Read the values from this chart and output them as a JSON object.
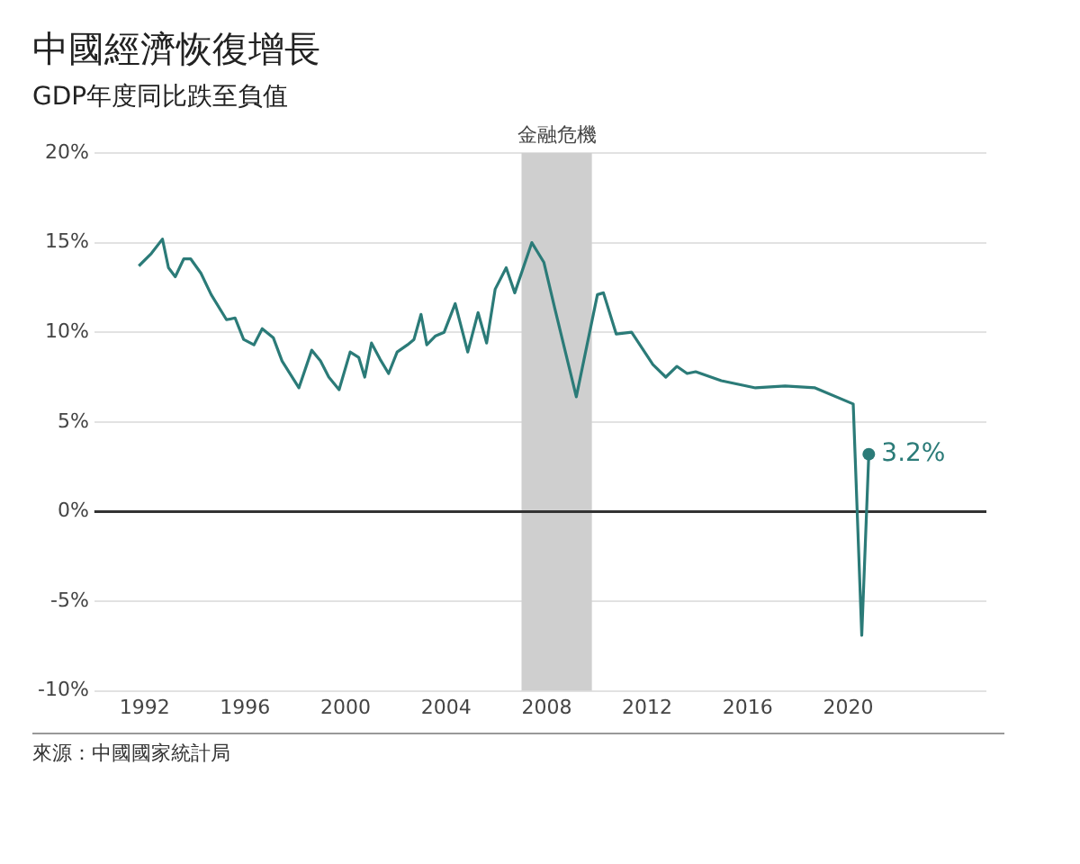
{
  "chart_data": {
    "type": "line",
    "title": "中國經濟恢復增長",
    "subtitle": "GDP年度同比跌至負值",
    "series": [
      {
        "color": "#2b7b78",
        "x": [
          1991.77,
          1992.27,
          1992.71,
          1992.95,
          1993.22,
          1993.56,
          1993.83,
          1994.24,
          1994.65,
          1995.26,
          1995.6,
          1995.94,
          1996.35,
          1996.68,
          1997.12,
          1997.47,
          1998.14,
          1998.65,
          1999.0,
          1999.33,
          1999.74,
          2000.18,
          2000.52,
          2000.76,
          2001.03,
          2001.37,
          2001.71,
          2002.05,
          2002.46,
          2002.72,
          2003.0,
          2003.23,
          2003.58,
          2003.92,
          2004.36,
          2004.86,
          2005.27,
          2005.61,
          2005.95,
          2006.39,
          2006.73,
          2007.41,
          2007.89,
          2008.33,
          2009.18,
          2010.02,
          2010.26,
          2010.77,
          2011.38,
          2012.23,
          2012.74,
          2013.18,
          2013.59,
          2013.93,
          2014.95,
          2016.31,
          2017.49,
          2018.68,
          2020.2,
          2020.54,
          2020.82
        ],
        "values": [
          13.7,
          14.4,
          15.2,
          13.6,
          13.1,
          14.1,
          14.1,
          13.3,
          12.1,
          10.7,
          10.8,
          9.6,
          9.3,
          10.2,
          9.7,
          8.4,
          6.9,
          9.0,
          8.4,
          7.5,
          6.8,
          8.9,
          8.6,
          7.5,
          9.4,
          8.5,
          7.7,
          8.9,
          9.3,
          9.6,
          11.0,
          9.3,
          9.8,
          10.0,
          11.6,
          8.9,
          11.1,
          9.4,
          12.4,
          13.6,
          12.2,
          15.0,
          13.9,
          11.3,
          6.4,
          12.1,
          12.2,
          9.9,
          10.0,
          8.2,
          7.5,
          8.1,
          7.7,
          7.8,
          7.3,
          6.9,
          7.0,
          6.9,
          6.0,
          -6.9,
          3.2
        ]
      }
    ],
    "xlim": [
      1990,
      2025.5
    ],
    "xticks": [
      1992,
      1996,
      2000,
      2004,
      2008,
      2012,
      2016,
      2020
    ],
    "ylim": [
      -10,
      20
    ],
    "yticks": [
      {
        "value": -10,
        "label": "-10%"
      },
      {
        "value": -5,
        "label": "-5%"
      },
      {
        "value": 0,
        "label": "0%"
      },
      {
        "value": 5,
        "label": "5%"
      },
      {
        "value": 10,
        "label": "10%"
      },
      {
        "value": 15,
        "label": "15%"
      },
      {
        "value": 20,
        "label": "20%"
      }
    ],
    "grid": "y",
    "legend": false,
    "ref_lines": [
      {
        "axis": "y",
        "value": 0,
        "color": "#333333"
      }
    ],
    "bands": [
      {
        "axis": "x",
        "from": 2007,
        "to": 2009.8,
        "label": "金融危機",
        "color": "#cfcfcf"
      }
    ],
    "annotations": [
      {
        "text": "3.2%",
        "x": 2020.82,
        "y": 3.2
      },
      "來源：中國國家統計局"
    ]
  }
}
